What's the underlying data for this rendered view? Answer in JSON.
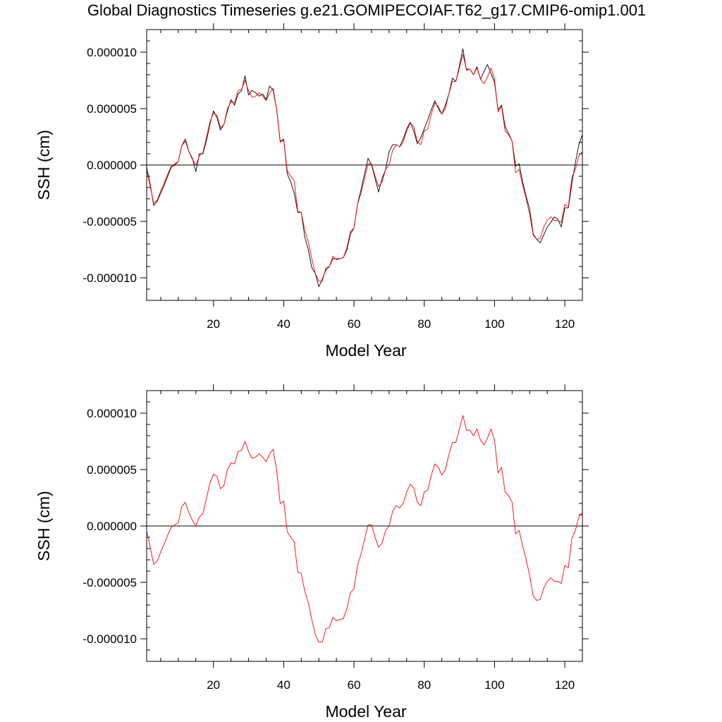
{
  "title": "Global Diagnostics Timeseries g.e21.GOMIPECOIAF.T62_g17.CMIP6-omip1.001",
  "colors": {
    "raw": "#000000",
    "smoothed": "#ff0000",
    "zero_line": "#000000"
  },
  "chart_data": [
    {
      "type": "line",
      "xlabel": "Model Year",
      "ylabel": "SSH (cm)",
      "xlim": [
        1,
        125
      ],
      "ylim": [
        -1.2e-05,
        1.2e-05
      ],
      "xticks": [
        20,
        40,
        60,
        80,
        100,
        120
      ],
      "xtick_labels": [
        "20",
        "40",
        "60",
        "80",
        "100",
        "120"
      ],
      "yticks": [
        1e-05,
        5e-06,
        0.0,
        -5e-06,
        -1e-05
      ],
      "ytick_labels": [
        "0.000010",
        "0.000005",
        "0.000000",
        "-0.000005",
        "-0.000010"
      ],
      "reference_line": 0.0,
      "grid": false,
      "series": [
        {
          "id": "raw",
          "color": "#000000",
          "x": [
            1,
            2,
            3,
            4,
            5,
            6,
            7,
            8,
            9,
            10,
            11,
            12,
            13,
            14,
            15,
            16,
            17,
            18,
            19,
            20,
            21,
            22,
            23,
            24,
            25,
            26,
            27,
            28,
            29,
            30,
            31,
            32,
            33,
            34,
            35,
            36,
            37,
            38,
            39,
            40,
            41,
            42,
            43,
            44,
            45,
            46,
            47,
            48,
            49,
            50,
            51,
            52,
            53,
            54,
            55,
            56,
            57,
            58,
            59,
            60,
            61,
            62,
            63,
            64,
            65,
            66,
            67,
            68,
            69,
            70,
            71,
            72,
            73,
            74,
            75,
            76,
            77,
            78,
            79,
            80,
            81,
            82,
            83,
            84,
            85,
            86,
            87,
            88,
            89,
            90,
            91,
            92,
            93,
            94,
            95,
            96,
            97,
            98,
            99,
            100,
            101,
            102,
            103,
            104,
            105,
            106,
            107,
            108,
            109,
            110,
            111,
            112,
            113,
            114,
            115,
            116,
            117,
            118,
            119,
            120,
            121,
            122,
            123,
            124,
            125
          ],
          "y": [
            -2e-07,
            -1.7e-06,
            -3.6e-06,
            -3.2e-06,
            -2.5e-06,
            -1.8e-06,
            -1e-06,
            -2e-07,
            0.0,
            3e-07,
            1.7e-06,
            2.3e-06,
            1.2e-06,
            6e-07,
            -6e-07,
            1e-06,
            1e-06,
            2.1e-06,
            3.6e-06,
            4.8e-06,
            4.2e-06,
            3.1e-06,
            3.6e-06,
            4.8e-06,
            5.8e-06,
            5.3e-06,
            6.3e-06,
            6.6e-06,
            7.9e-06,
            6.2e-06,
            6.6e-06,
            6.4e-06,
            6.1e-06,
            6.3e-06,
            5.8e-06,
            7e-06,
            6.6e-06,
            4.9e-06,
            2.1e-06,
            2.3e-06,
            -8e-07,
            -1.5e-06,
            -2.5e-06,
            -4.2e-06,
            -4.2e-06,
            -6.4e-06,
            -7.5e-06,
            -9.1e-06,
            -9.6e-06,
            -1.08e-05,
            -1.01e-05,
            -9.3e-06,
            -9e-06,
            -8.3e-06,
            -8.3e-06,
            -8.3e-06,
            -8.2e-06,
            -7.5e-06,
            -6.1e-06,
            -5.6e-06,
            -3.5e-06,
            -2.2e-06,
            -8e-07,
            6e-07,
            0.0,
            -1.2e-06,
            -2.4e-06,
            -1.2e-06,
            -4e-07,
            1.2e-06,
            1.8e-06,
            1.8e-06,
            1.6e-06,
            2.3e-06,
            3.2e-06,
            3.8e-06,
            3e-06,
            1.9e-06,
            2.4e-06,
            3.2e-06,
            4e-06,
            4.9e-06,
            5.7e-06,
            5e-06,
            4.5e-06,
            5.3e-06,
            6.3e-06,
            7.7e-06,
            7.4e-06,
            8.8e-06,
            1.03e-05,
            8.4e-06,
            8.5e-06,
            8e-06,
            8.7e-06,
            7.6e-06,
            8.3e-06,
            8.9e-06,
            8.1e-06,
            7.3e-06,
            4.9e-06,
            5.3e-06,
            3.4e-06,
            2.8e-06,
            2.1e-06,
            -1e-07,
            1e-07,
            -1.5e-06,
            -2.8e-06,
            -3.9e-06,
            -6.1e-06,
            -6.6e-06,
            -6.9e-06,
            -6.2e-06,
            -5.5e-06,
            -5.1e-06,
            -4.6e-06,
            -4.8e-06,
            -5.5e-06,
            -3.8e-06,
            -3.8e-06,
            -1.7e-06,
            2e-07,
            1.8e-06,
            2.7e-06
          ]
        },
        {
          "id": "smoothed",
          "color": "#ff0000",
          "x": [
            1,
            2,
            3,
            4,
            5,
            6,
            7,
            8,
            9,
            10,
            11,
            12,
            13,
            14,
            15,
            16,
            17,
            18,
            19,
            20,
            21,
            22,
            23,
            24,
            25,
            26,
            27,
            28,
            29,
            30,
            31,
            32,
            33,
            34,
            35,
            36,
            37,
            38,
            39,
            40,
            41,
            42,
            43,
            44,
            45,
            46,
            47,
            48,
            49,
            50,
            51,
            52,
            53,
            54,
            55,
            56,
            57,
            58,
            59,
            60,
            61,
            62,
            63,
            64,
            65,
            66,
            67,
            68,
            69,
            70,
            71,
            72,
            73,
            74,
            75,
            76,
            77,
            78,
            79,
            80,
            81,
            82,
            83,
            84,
            85,
            86,
            87,
            88,
            89,
            90,
            91,
            92,
            93,
            94,
            95,
            96,
            97,
            98,
            99,
            100,
            101,
            102,
            103,
            104,
            105,
            106,
            107,
            108,
            109,
            110,
            111,
            112,
            113,
            114,
            115,
            116,
            117,
            118,
            119,
            120,
            121,
            122,
            123,
            124,
            125
          ],
          "y": [
            -4e-07,
            -1.9e-06,
            -3.4e-06,
            -3.1e-06,
            -2.3e-06,
            -1.6e-06,
            -8e-07,
            -1e-07,
            1e-07,
            3e-07,
            1.7e-06,
            2.1e-06,
            1.2e-06,
            5e-07,
            0.0,
            8e-07,
            1.1e-06,
            2.4e-06,
            3.8e-06,
            4.6e-06,
            4.4e-06,
            3.3e-06,
            3.6e-06,
            5e-06,
            5.6e-06,
            5.5e-06,
            6.6e-06,
            6.7e-06,
            7.5e-06,
            6.6e-06,
            6e-06,
            6.1e-06,
            6.4e-06,
            6.1e-06,
            5.7e-06,
            6.4e-06,
            6.8e-06,
            4.9e-06,
            2e-06,
            2.2e-06,
            -5e-07,
            -1e-06,
            -1.4e-06,
            -4.1e-06,
            -4.2e-06,
            -5.8e-06,
            -6.8e-06,
            -8.3e-06,
            -9.6e-06,
            -1.03e-05,
            -1.03e-05,
            -9.1e-06,
            -9e-06,
            -8.1e-06,
            -8.4e-06,
            -8.3e-06,
            -8.2e-06,
            -7.3e-06,
            -5.9e-06,
            -5.6e-06,
            -3.5e-06,
            -2.5e-06,
            -1.2e-06,
            1e-07,
            1e-07,
            -1e-06,
            -1.9e-06,
            -1.5e-06,
            -4e-07,
            0.0,
            1.3e-06,
            1.8e-06,
            1.6e-06,
            2e-06,
            3e-06,
            3.7e-06,
            3.4e-06,
            2.1e-06,
            1.8e-06,
            3e-06,
            3.2e-06,
            4.5e-06,
            5.5e-06,
            5.2e-06,
            4.5e-06,
            5e-06,
            6.3e-06,
            7.4e-06,
            7.4e-06,
            8.6e-06,
            9.8e-06,
            8.5e-06,
            8.5e-06,
            8e-06,
            8.6e-06,
            7.6e-06,
            7.2e-06,
            7.8e-06,
            8.6e-06,
            7.6e-06,
            4.7e-06,
            5.2e-06,
            3e-06,
            2.7e-06,
            2.1e-06,
            -7e-07,
            -4e-07,
            -1.8e-06,
            -3e-06,
            -4.4e-06,
            -6.2e-06,
            -6.6e-06,
            -6.5e-06,
            -5.5e-06,
            -4.9e-06,
            -4.6e-06,
            -4.9e-06,
            -4.9e-06,
            -5.1e-06,
            -3.5e-06,
            -3.7e-06,
            -1.1e-06,
            -4e-07,
            8e-07,
            1.2e-06
          ]
        }
      ]
    },
    {
      "type": "line",
      "xlabel": "Model Year",
      "ylabel": "SSH (cm)",
      "xlim": [
        1,
        125
      ],
      "ylim": [
        -1.2e-05,
        1.2e-05
      ],
      "xticks": [
        20,
        40,
        60,
        80,
        100,
        120
      ],
      "xtick_labels": [
        "20",
        "40",
        "60",
        "80",
        "100",
        "120"
      ],
      "yticks": [
        1e-05,
        5e-06,
        0.0,
        -5e-06,
        -1e-05
      ],
      "ytick_labels": [
        "0.000010",
        "0.000005",
        "0.000000",
        "-0.000005",
        "-0.000010"
      ],
      "reference_line": 0.0,
      "grid": false,
      "series": [
        {
          "id": "smoothed",
          "color": "#ff0000",
          "x": [
            1,
            2,
            3,
            4,
            5,
            6,
            7,
            8,
            9,
            10,
            11,
            12,
            13,
            14,
            15,
            16,
            17,
            18,
            19,
            20,
            21,
            22,
            23,
            24,
            25,
            26,
            27,
            28,
            29,
            30,
            31,
            32,
            33,
            34,
            35,
            36,
            37,
            38,
            39,
            40,
            41,
            42,
            43,
            44,
            45,
            46,
            47,
            48,
            49,
            50,
            51,
            52,
            53,
            54,
            55,
            56,
            57,
            58,
            59,
            60,
            61,
            62,
            63,
            64,
            65,
            66,
            67,
            68,
            69,
            70,
            71,
            72,
            73,
            74,
            75,
            76,
            77,
            78,
            79,
            80,
            81,
            82,
            83,
            84,
            85,
            86,
            87,
            88,
            89,
            90,
            91,
            92,
            93,
            94,
            95,
            96,
            97,
            98,
            99,
            100,
            101,
            102,
            103,
            104,
            105,
            106,
            107,
            108,
            109,
            110,
            111,
            112,
            113,
            114,
            115,
            116,
            117,
            118,
            119,
            120,
            121,
            122,
            123,
            124,
            125
          ],
          "y": [
            -4e-07,
            -1.9e-06,
            -3.4e-06,
            -3.1e-06,
            -2.3e-06,
            -1.6e-06,
            -8e-07,
            -1e-07,
            1e-07,
            3e-07,
            1.7e-06,
            2.1e-06,
            1.2e-06,
            5e-07,
            0.0,
            8e-07,
            1.1e-06,
            2.4e-06,
            3.8e-06,
            4.6e-06,
            4.4e-06,
            3.3e-06,
            3.6e-06,
            5e-06,
            5.6e-06,
            5.5e-06,
            6.6e-06,
            6.7e-06,
            7.5e-06,
            6.6e-06,
            6e-06,
            6.1e-06,
            6.4e-06,
            6.1e-06,
            5.7e-06,
            6.4e-06,
            6.8e-06,
            4.9e-06,
            2e-06,
            2.2e-06,
            -5e-07,
            -1e-06,
            -1.4e-06,
            -4.1e-06,
            -4.2e-06,
            -5.8e-06,
            -6.8e-06,
            -8.3e-06,
            -9.6e-06,
            -1.03e-05,
            -1.03e-05,
            -9.1e-06,
            -9e-06,
            -8.1e-06,
            -8.4e-06,
            -8.3e-06,
            -8.2e-06,
            -7.3e-06,
            -5.9e-06,
            -5.6e-06,
            -3.5e-06,
            -2.5e-06,
            -1.2e-06,
            1e-07,
            1e-07,
            -1e-06,
            -1.9e-06,
            -1.5e-06,
            -4e-07,
            0.0,
            1.3e-06,
            1.8e-06,
            1.6e-06,
            2e-06,
            3e-06,
            3.7e-06,
            3.4e-06,
            2.1e-06,
            1.8e-06,
            3e-06,
            3.2e-06,
            4.5e-06,
            5.5e-06,
            5.2e-06,
            4.5e-06,
            5e-06,
            6.3e-06,
            7.4e-06,
            7.4e-06,
            8.6e-06,
            9.8e-06,
            8.5e-06,
            8.5e-06,
            8e-06,
            8.6e-06,
            7.6e-06,
            7.2e-06,
            7.8e-06,
            8.6e-06,
            7.6e-06,
            4.7e-06,
            5.2e-06,
            3e-06,
            2.7e-06,
            2.1e-06,
            -7e-07,
            -4e-07,
            -1.8e-06,
            -3e-06,
            -4.4e-06,
            -6.2e-06,
            -6.6e-06,
            -6.5e-06,
            -5.5e-06,
            -4.9e-06,
            -4.6e-06,
            -4.9e-06,
            -4.9e-06,
            -5.1e-06,
            -3.5e-06,
            -3.7e-06,
            -1.1e-06,
            -4e-07,
            8e-07,
            1.2e-06
          ]
        }
      ]
    }
  ]
}
